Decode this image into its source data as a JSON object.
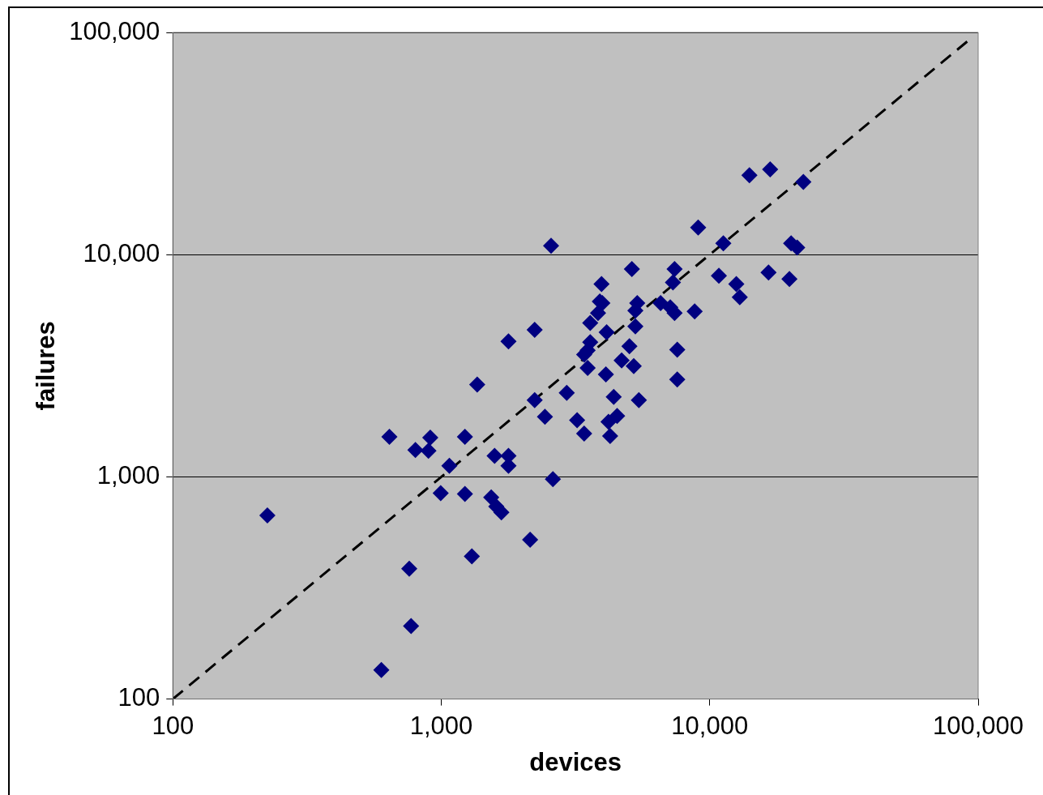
{
  "chart_data": {
    "type": "scatter",
    "xlabel": "devices",
    "ylabel": "failures",
    "log": "xy",
    "grid": "y",
    "marker": "diamond",
    "xlim": [
      100,
      100000
    ],
    "ylim": [
      100,
      100000
    ],
    "xticks": [
      100,
      {
        "value": 1000,
        "label": "1,000"
      },
      {
        "value": 10000,
        "label": "10,000"
      },
      {
        "value": 100000,
        "label": "100,000"
      }
    ],
    "yticks": [
      100,
      {
        "value": 1000,
        "label": "1,000"
      },
      {
        "value": 10000,
        "label": "10,000"
      },
      {
        "value": 100000,
        "label": "100,000"
      }
    ],
    "series": [
      {
        "color": "#000080",
        "x": [
          225,
          598,
          641,
          760,
          772,
          801,
          896,
          910,
          995,
          1072,
          1225,
          1225,
          1300,
          1361,
          1535,
          1580,
          1603,
          1675,
          1780,
          1780,
          1780,
          2143,
          2228,
          2228,
          2433,
          2565,
          2605,
          2933,
          3207,
          3406,
          3589,
          3509,
          3406,
          3509,
          3589,
          3837,
          3896,
          3981,
          3954,
          4131,
          4104,
          4198,
          4256,
          4389,
          4519,
          4698,
          5023,
          5129,
          5212,
          5284,
          5284,
          5370,
          5445,
          6561,
          7129,
          7295,
          7396,
          7396,
          7568,
          7568,
          8790,
          9057,
          10820,
          11240,
          12560,
          12940,
          14060,
          16790,
          16560,
          19810,
          20100,
          21180,
          22330
        ],
        "values": [
          670,
          135,
          1515,
          386,
          213,
          1320,
          1310,
          1502,
          844,
          1122,
          1515,
          837,
          439,
          2605,
          809,
          1244,
          736,
          692,
          4074,
          1244,
          1122,
          521,
          2213,
          4592,
          1862,
          10960,
          977,
          2390,
          1800,
          1567,
          4037,
          3707,
          3548,
          3093,
          4922,
          5458,
          6152,
          6053,
          7379,
          4477,
          2888,
          1770,
          1528,
          2290,
          1879,
          3342,
          3870,
          8610,
          3148,
          4755,
          5598,
          6053,
          2213,
          6053,
          5794,
          7499,
          8610,
          5458,
          3738,
          2742,
          5550,
          13240,
          8035,
          11240,
          7379,
          6427,
          22750,
          24170,
          8318,
          7762,
          11240,
          10760,
          21250
        ]
      },
      {
        "type": "line",
        "color": "#000000",
        "line_style": "dashed",
        "marker": "none",
        "x": [
          100,
          91000
        ],
        "values": [
          100,
          91000
        ]
      }
    ]
  }
}
